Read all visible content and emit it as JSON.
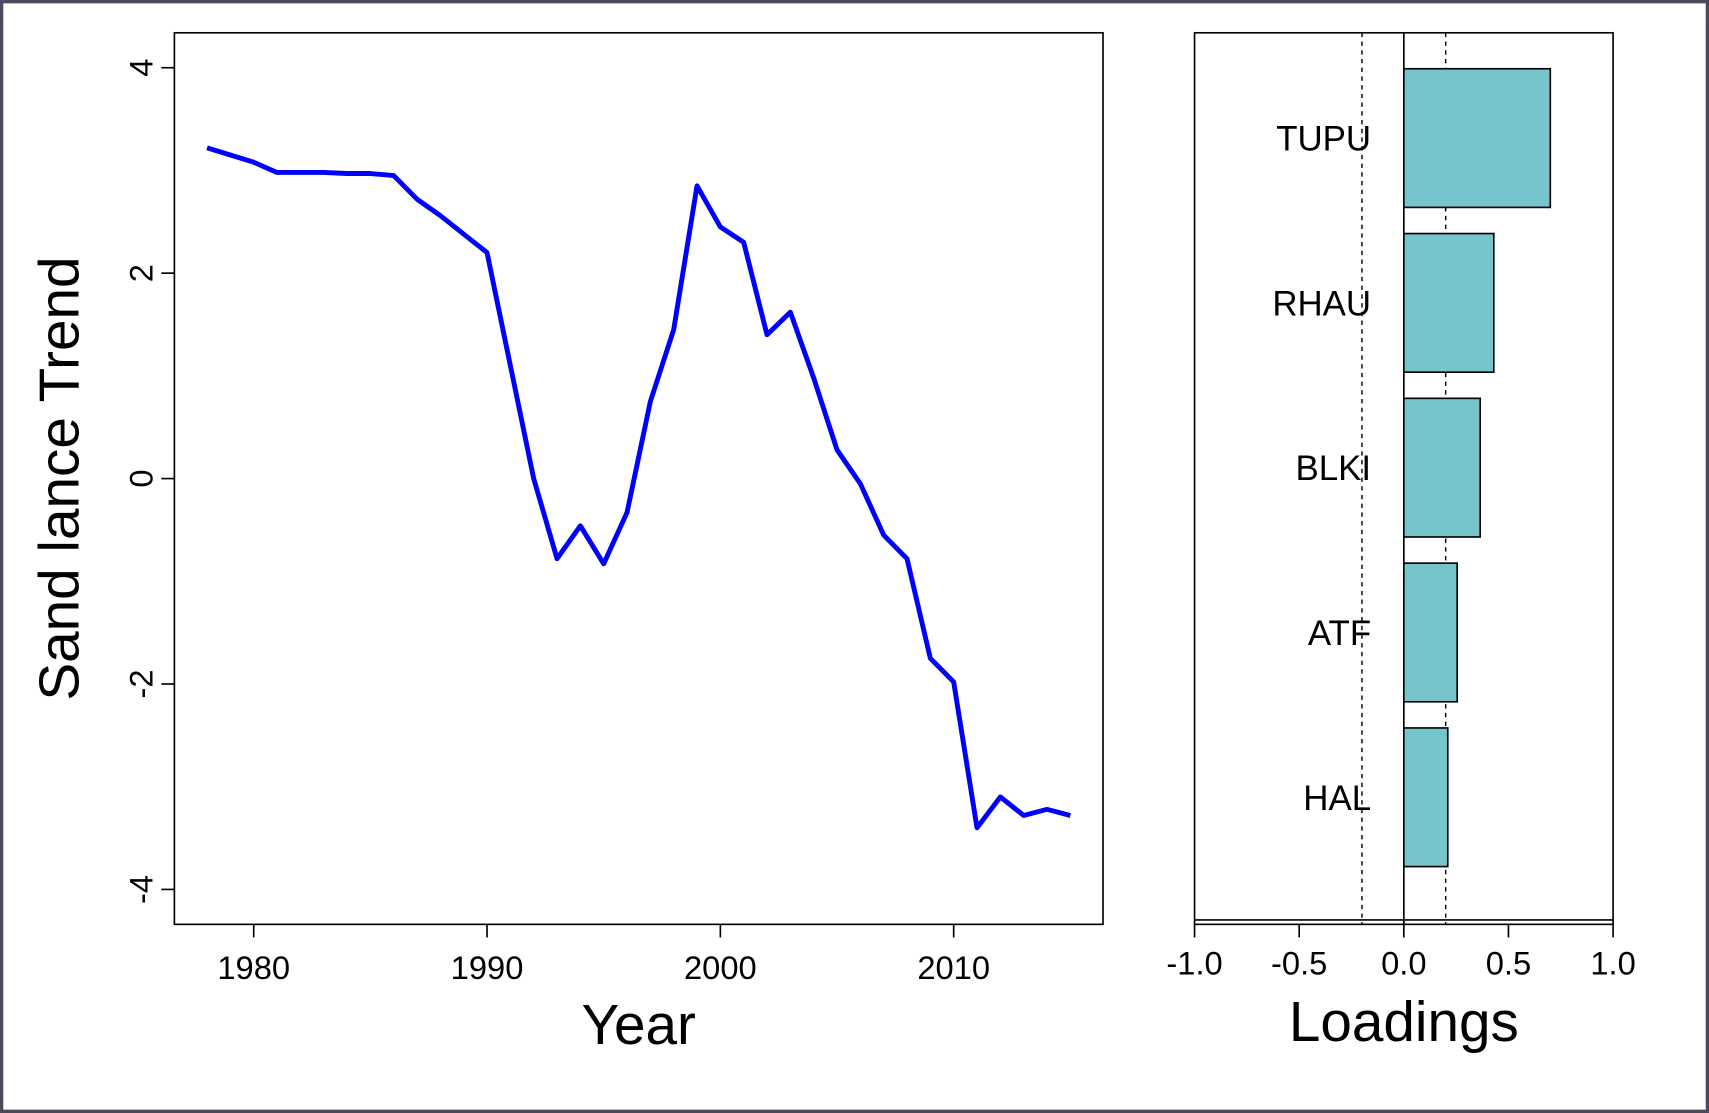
{
  "chart_data": [
    {
      "type": "line",
      "x_label": "Year",
      "y_label": "Sand lance Trend",
      "x": [
        1978,
        1979,
        1980,
        1981,
        1982,
        1983,
        1984,
        1985,
        1986,
        1987,
        1988,
        1989,
        1990,
        1991,
        1992,
        1993,
        1994,
        1995,
        1996,
        1997,
        1998,
        1999,
        2000,
        2001,
        2002,
        2003,
        2004,
        2005,
        2006,
        2007,
        2008,
        2009,
        2010,
        2011,
        2012,
        2013,
        2014,
        2015
      ],
      "series": [
        {
          "color": "#0000ff",
          "values": [
            3.22,
            3.15,
            3.08,
            2.98,
            2.98,
            2.98,
            2.97,
            2.97,
            2.95,
            2.72,
            2.56,
            2.38,
            2.2,
            1.1,
            0.0,
            -0.78,
            -0.46,
            -0.83,
            -0.33,
            0.75,
            1.45,
            2.85,
            2.45,
            2.3,
            1.4,
            1.62,
            0.98,
            0.28,
            -0.05,
            -0.55,
            -0.78,
            -1.75,
            -1.98,
            -3.4,
            -3.1,
            -3.28,
            -3.22,
            -3.28
          ]
        }
      ],
      "xlim": [
        1976.6,
        2016.4
      ],
      "xticks": [
        1980,
        1990,
        2000,
        2010
      ],
      "ylim": [
        -4.34,
        4.34
      ],
      "yticks": [
        -4,
        -2,
        0,
        2,
        4
      ]
    },
    {
      "type": "barh",
      "x_label": "Loadings",
      "categories": [
        "TUPU",
        "RHAU",
        "BLKI",
        "ATF",
        "HAL"
      ],
      "values": [
        0.7,
        0.43,
        0.365,
        0.255,
        0.21
      ],
      "color": "#76c5cc",
      "reference_lines": [
        -0.2,
        0.2
      ],
      "xlim": [
        -1.0,
        1.0
      ],
      "xticks": [
        {
          "value": -1,
          "label": "-1.0"
        },
        {
          "value": -0.5,
          "label": "-0.5"
        },
        {
          "value": 0,
          "label": "0.0"
        },
        {
          "value": 0.5,
          "label": "0.5"
        },
        {
          "value": 1,
          "label": "1.0"
        }
      ]
    }
  ]
}
